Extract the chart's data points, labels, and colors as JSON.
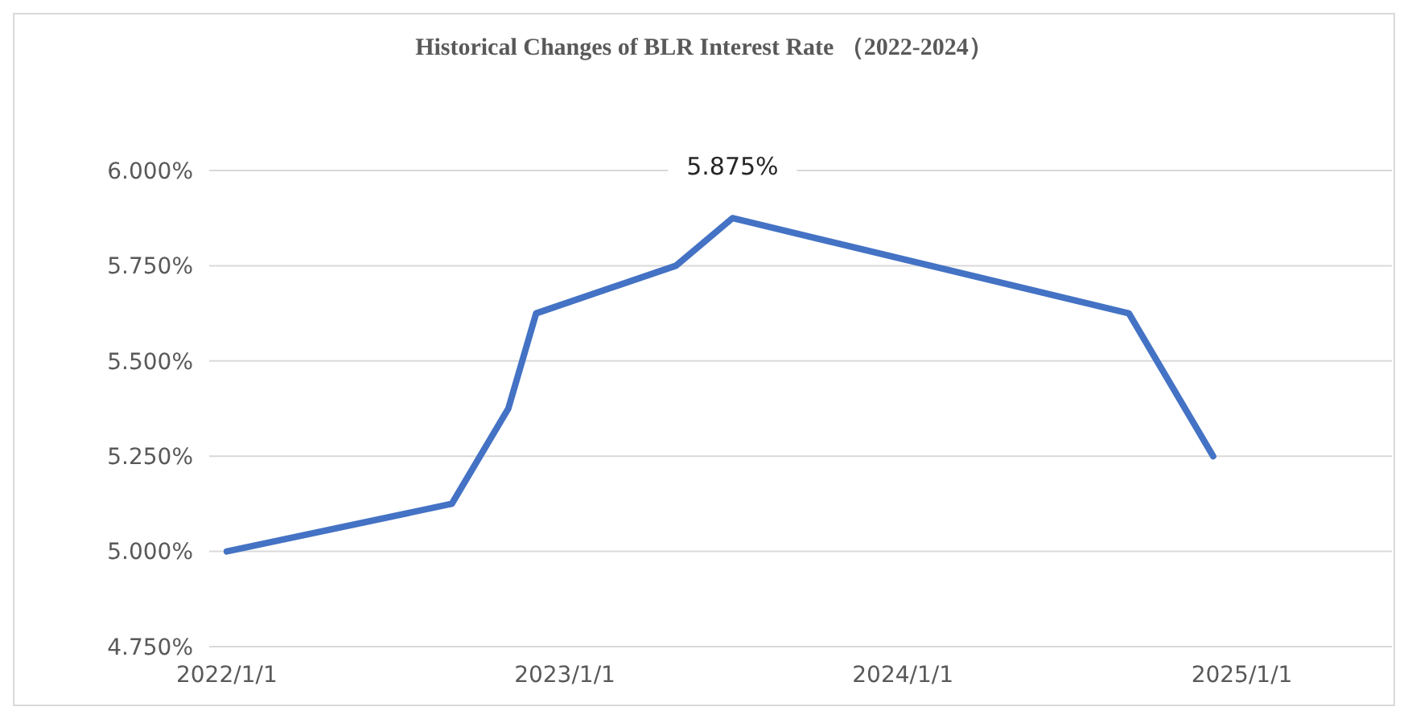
{
  "chart_data": {
    "type": "line",
    "title": "Historical Changes of BLR Interest Rate （2022-2024）",
    "x": [
      "2022-01-01",
      "2022-09-01",
      "2022-11-01",
      "2022-12-01",
      "2023-05-01",
      "2023-07-01",
      "2024-09-01",
      "2024-12-01"
    ],
    "series": [
      {
        "color": "#4472c4",
        "values": [
          5.0,
          5.125,
          5.375,
          5.625,
          5.75,
          5.875,
          5.625,
          5.25
        ]
      }
    ],
    "xlim": [
      "2021-12-13",
      "2025-06-12"
    ],
    "xticks": [
      {
        "value": "2022-01-01",
        "label": "2022/1/1"
      },
      {
        "value": "2023-01-01",
        "label": "2023/1/1"
      },
      {
        "value": "2024-01-01",
        "label": "2024/1/1"
      },
      {
        "value": "2025-01-01",
        "label": "2025/1/1"
      }
    ],
    "ylim": [
      4.75,
      6.0
    ],
    "yticks": [
      {
        "value": 4.75,
        "label": "4.750%"
      },
      {
        "value": 5.0,
        "label": "5.000%"
      },
      {
        "value": 5.25,
        "label": "5.250%"
      },
      {
        "value": 5.5,
        "label": "5.500%"
      },
      {
        "value": 5.75,
        "label": "5.750%"
      },
      {
        "value": 6.0,
        "label": "6.000%"
      }
    ],
    "annotations": [
      {
        "text": "5.875%",
        "x": "2023-07-01",
        "y": 5.875
      }
    ],
    "grid": "y",
    "marker": "none",
    "line_style": "solid"
  }
}
